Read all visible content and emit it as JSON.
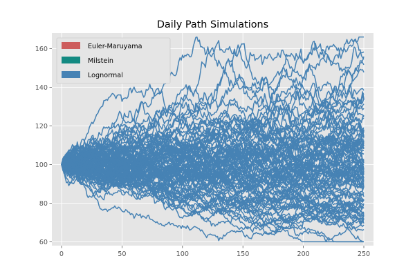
{
  "chart_data": {
    "type": "line",
    "title": "Daily Path Simulations",
    "xlabel": "",
    "ylabel": "",
    "xlim": [
      -8,
      258
    ],
    "ylim": [
      58,
      168
    ],
    "xticks": [
      0,
      50,
      100,
      150,
      200,
      250
    ],
    "yticks": [
      60,
      80,
      100,
      120,
      140,
      160
    ],
    "grid": true,
    "legend_placement": "top-left",
    "background_color": "#e5e5e5",
    "grid_color": "#ffffff",
    "legend": [
      {
        "name": "Euler-Maruyama",
        "color": "#cd5c5c"
      },
      {
        "name": "Milstein",
        "color": "#138a82"
      },
      {
        "name": "Lognormal",
        "color": "#4682b4"
      }
    ],
    "paths": {
      "count": 100,
      "steps": 250,
      "start_value": 100,
      "color": "#4682b4",
      "approx_final_min": 67,
      "approx_final_max": 161,
      "approx_max_value": 163,
      "approx_min_value": 63
    }
  }
}
